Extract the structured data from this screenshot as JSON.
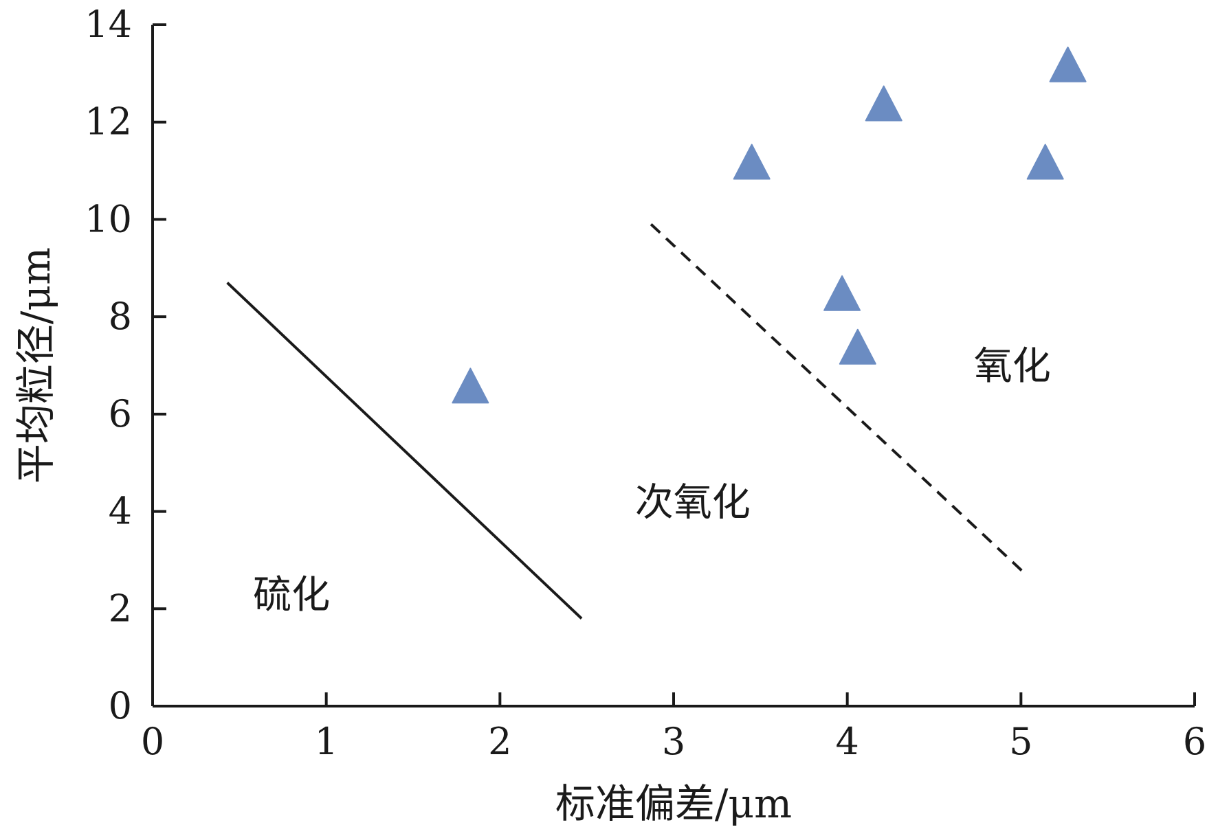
{
  "chart_data": {
    "type": "scatter",
    "xlabel": "标准偏差/μm",
    "ylabel": "平均粒径/μm",
    "xlim": [
      0,
      6
    ],
    "ylim": [
      0,
      14
    ],
    "xticks": [
      0,
      1,
      2,
      3,
      4,
      5,
      6
    ],
    "yticks": [
      0,
      2,
      4,
      6,
      8,
      10,
      12,
      14
    ],
    "grid": false,
    "series": [
      {
        "marker": "triangle",
        "color": "#6b8cc2",
        "points": [
          {
            "x": 1.83,
            "y": 6.5
          },
          {
            "x": 3.45,
            "y": 11.1
          },
          {
            "x": 3.97,
            "y": 8.4
          },
          {
            "x": 4.06,
            "y": 7.3
          },
          {
            "x": 4.21,
            "y": 12.3
          },
          {
            "x": 5.14,
            "y": 11.1
          },
          {
            "x": 5.27,
            "y": 13.1
          }
        ]
      }
    ],
    "boundary_lines": [
      {
        "style": "solid",
        "color": "#1a1a1a",
        "from": {
          "x": 0.43,
          "y": 8.7
        },
        "to": {
          "x": 2.47,
          "y": 1.8
        }
      },
      {
        "style": "dashed",
        "color": "#1a1a1a",
        "from": {
          "x": 2.87,
          "y": 9.9
        },
        "to": {
          "x": 5.03,
          "y": 2.7
        }
      }
    ],
    "region_labels": [
      {
        "text": "硫化",
        "x": 0.8,
        "y": 2.3
      },
      {
        "text": "次氧化",
        "x": 3.11,
        "y": 4.2
      },
      {
        "text": "氧化",
        "x": 4.95,
        "y": 7.0
      }
    ]
  }
}
